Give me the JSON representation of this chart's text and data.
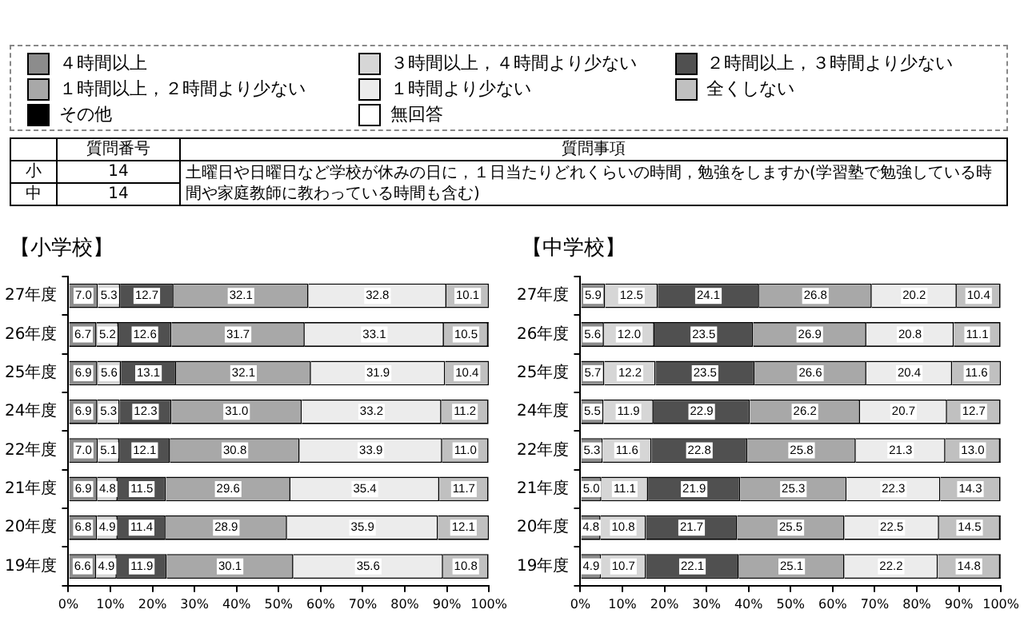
{
  "chart_data": [
    {
      "type": "bar",
      "title": "【小学校】",
      "orientation": "horizontal",
      "stacked": true,
      "legend": "top",
      "grid": false,
      "annotations": [
        "質問番号",
        "質問事項",
        "小",
        "14",
        "中",
        "14",
        "土曜日や日曜日など学校が休みの日に，１日当たりどれくらいの時間，勉強をしますか(学習塾で勉強している時間や家庭教師に教わっている時間も含む)"
      ],
      "categories": [
        "27年度",
        "26年度",
        "25年度",
        "24年度",
        "22年度",
        "21年度",
        "20年度",
        "19年度"
      ],
      "xlim": [
        0,
        100
      ],
      "xticks": [
        {
          "value": 0,
          "label": "0%"
        },
        {
          "value": 10,
          "label": "10%"
        },
        {
          "value": 20,
          "label": "20%"
        },
        {
          "value": 30,
          "label": "30%"
        },
        {
          "value": 40,
          "label": "40%"
        },
        {
          "value": 50,
          "label": "50%"
        },
        {
          "value": 60,
          "label": "60%"
        },
        {
          "value": 70,
          "label": "70%"
        },
        {
          "value": 80,
          "label": "80%"
        },
        {
          "value": 90,
          "label": "90%"
        },
        {
          "value": 100,
          "label": "100%"
        }
      ],
      "series": [
        {
          "name": "４時間以上",
          "color": "#8c8c8c",
          "values": [
            7.0,
            6.7,
            6.9,
            6.9,
            7.0,
            6.9,
            6.8,
            6.6
          ],
          "value_labels": [
            "7.0",
            "6.7",
            "6.9",
            "6.9",
            "7.0",
            "6.9",
            "6.8",
            "6.6"
          ]
        },
        {
          "name": "３時間以上，４時間より少ない",
          "color": "#d6d6d6",
          "values": [
            5.3,
            5.2,
            5.6,
            5.3,
            5.1,
            4.8,
            4.9,
            4.9
          ],
          "value_labels": [
            "5.3",
            "5.2",
            "5.6",
            "5.3",
            "5.1",
            "4.8",
            "4.9",
            "4.9"
          ]
        },
        {
          "name": "２時間以上，３時間より少ない",
          "color": "#505050",
          "values": [
            12.7,
            12.6,
            13.1,
            12.3,
            12.1,
            11.5,
            11.4,
            11.9
          ],
          "value_labels": [
            "12.7",
            "12.6",
            "13.1",
            "12.3",
            "12.1",
            "11.5",
            "11.4",
            "11.9"
          ]
        },
        {
          "name": "１時間以上，２時間より少ない",
          "color": "#a8a8a8",
          "values": [
            32.1,
            31.7,
            32.1,
            31.0,
            30.8,
            29.6,
            28.9,
            30.1
          ],
          "value_labels": [
            "32.1",
            "31.7",
            "32.1",
            "31.0",
            "30.8",
            "29.6",
            "28.9",
            "30.1"
          ]
        },
        {
          "name": "１時間より少ない",
          "color": "#ececec",
          "values": [
            32.8,
            33.1,
            31.9,
            33.2,
            33.9,
            35.4,
            35.9,
            35.6
          ],
          "value_labels": [
            "32.8",
            "33.1",
            "31.9",
            "33.2",
            "33.9",
            "35.4",
            "35.9",
            "35.6"
          ]
        },
        {
          "name": "全くしない",
          "color": "#c0c0c0",
          "values": [
            10.1,
            10.5,
            10.4,
            11.2,
            11.0,
            11.7,
            12.1,
            10.8
          ],
          "value_labels": [
            "10.1",
            "10.5",
            "10.4",
            "11.2",
            "11.0",
            "11.7",
            "12.1",
            "10.8"
          ]
        },
        {
          "name": "その他",
          "color": "#000000",
          "values": [
            0,
            0.2,
            0,
            0.1,
            0.1,
            0.1,
            0,
            0.1
          ]
        },
        {
          "name": "無回答",
          "color": "#ffffff",
          "values": [
            null,
            null,
            null,
            null,
            null,
            null,
            null,
            null
          ]
        }
      ]
    },
    {
      "type": "bar",
      "title": "【中学校】",
      "orientation": "horizontal",
      "stacked": true,
      "grid": false,
      "categories": [
        "27年度",
        "26年度",
        "25年度",
        "24年度",
        "22年度",
        "21年度",
        "20年度",
        "19年度"
      ],
      "xlim": [
        0,
        100
      ],
      "xticks": [
        {
          "value": 0,
          "label": "0%"
        },
        {
          "value": 10,
          "label": "10%"
        },
        {
          "value": 20,
          "label": "20%"
        },
        {
          "value": 30,
          "label": "30%"
        },
        {
          "value": 40,
          "label": "40%"
        },
        {
          "value": 50,
          "label": "50%"
        },
        {
          "value": 60,
          "label": "60%"
        },
        {
          "value": 70,
          "label": "70%"
        },
        {
          "value": 80,
          "label": "80%"
        },
        {
          "value": 90,
          "label": "90%"
        },
        {
          "value": 100,
          "label": "100%"
        }
      ],
      "series": [
        {
          "color": "#8c8c8c",
          "values": [
            5.9,
            5.6,
            5.7,
            5.5,
            5.3,
            5.0,
            4.8,
            4.9
          ],
          "value_labels": [
            "5.9",
            "5.6",
            "5.7",
            "5.5",
            "5.3",
            "5.0",
            "4.8",
            "4.9"
          ]
        },
        {
          "color": "#d6d6d6",
          "values": [
            12.5,
            12.0,
            12.2,
            11.9,
            11.6,
            11.1,
            10.8,
            10.7
          ],
          "value_labels": [
            "12.5",
            "12.0",
            "12.2",
            "11.9",
            "11.6",
            "11.1",
            "10.8",
            "10.7"
          ]
        },
        {
          "color": "#505050",
          "values": [
            24.1,
            23.5,
            23.5,
            22.9,
            22.8,
            21.9,
            21.7,
            22.1
          ],
          "value_labels": [
            "24.1",
            "23.5",
            "23.5",
            "22.9",
            "22.8",
            "21.9",
            "21.7",
            "22.1"
          ]
        },
        {
          "color": "#a8a8a8",
          "values": [
            26.8,
            26.9,
            26.6,
            26.2,
            25.8,
            25.3,
            25.5,
            25.1
          ],
          "value_labels": [
            "26.8",
            "26.9",
            "26.6",
            "26.2",
            "25.8",
            "25.3",
            "25.5",
            "25.1"
          ]
        },
        {
          "color": "#ececec",
          "values": [
            20.2,
            20.8,
            20.4,
            20.7,
            21.3,
            22.3,
            22.5,
            22.2
          ],
          "value_labels": [
            "20.2",
            "20.8",
            "20.4",
            "20.7",
            "21.3",
            "22.3",
            "22.5",
            "22.2"
          ]
        },
        {
          "color": "#c0c0c0",
          "values": [
            10.4,
            11.1,
            11.6,
            12.7,
            13.0,
            14.3,
            14.5,
            14.8
          ],
          "value_labels": [
            "10.4",
            "11.1",
            "11.6",
            "12.7",
            "13.0",
            "14.3",
            "14.5",
            "14.8"
          ]
        },
        {
          "color": "#000000",
          "values": [
            0.1,
            0.1,
            0,
            0.1,
            0.2,
            0.1,
            0.2,
            0.2
          ]
        },
        {
          "color": "#ffffff",
          "values": [
            null,
            null,
            null,
            null,
            null,
            null,
            null,
            null
          ]
        }
      ]
    }
  ]
}
